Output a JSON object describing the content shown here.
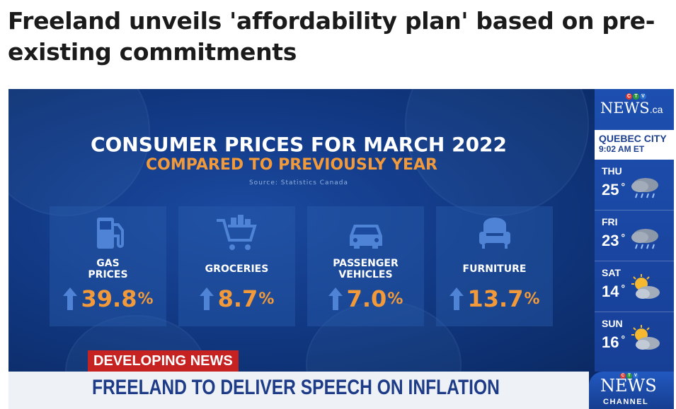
{
  "article": {
    "headline": "Freeland unveils 'affordability plan' based on pre-existing commitments"
  },
  "graphic": {
    "title": "CONSUMER PRICES FOR MARCH 2022",
    "subtitle": "COMPARED TO PREVIOUSLY YEAR",
    "source": "Source: Statistics Canada",
    "accent_color": "#f29a3a",
    "items": [
      {
        "label": "GAS\nPRICES",
        "value": "39.8",
        "unit": "%",
        "icon": "gas-pump-icon",
        "direction": "up"
      },
      {
        "label": "GROCERIES",
        "value": "8.7",
        "unit": "%",
        "icon": "shopping-cart-icon",
        "direction": "up"
      },
      {
        "label": "PASSENGER\nVEHICLES",
        "value": "7.0",
        "unit": "%",
        "icon": "car-icon",
        "direction": "up"
      },
      {
        "label": "FURNITURE",
        "value": "13.7",
        "unit": "%",
        "icon": "armchair-icon",
        "direction": "up"
      }
    ]
  },
  "sidebar": {
    "logo_ctv": "CTV",
    "logo_text": "NEWS",
    "logo_suffix": ".ca",
    "location": "QUEBEC CITY",
    "time": "9:02 AM ET",
    "forecast": [
      {
        "day": "THU",
        "temp": "25",
        "unit": "°",
        "icon": "cloud-rain-icon"
      },
      {
        "day": "FRI",
        "temp": "23",
        "unit": "°",
        "icon": "cloud-rain-icon"
      },
      {
        "day": "SAT",
        "temp": "14",
        "unit": "°",
        "icon": "partly-sunny-icon"
      },
      {
        "day": "SUN",
        "temp": "16",
        "unit": "°",
        "icon": "partly-sunny-icon"
      }
    ]
  },
  "ticker": {
    "tag": "DEVELOPING NEWS",
    "text": "FREELAND TO DELIVER SPEECH ON INFLATION",
    "channel_ctv": "CTV",
    "channel_news": "NEWS",
    "channel_label": "CHANNEL",
    "tag_color": "#c62222"
  }
}
